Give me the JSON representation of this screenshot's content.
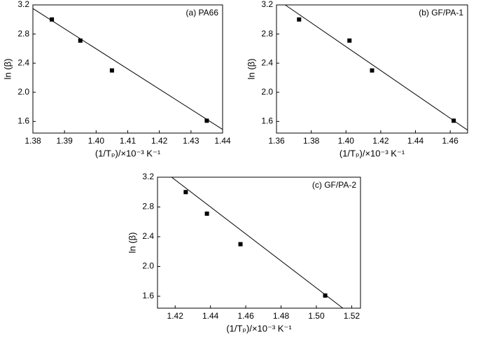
{
  "chart_data": [
    {
      "type": "scatter",
      "title": "(a) PA66",
      "xlabel": "(1/Tₚ)/×10⁻³ K⁻¹",
      "ylabel": "ln (β)",
      "x": [
        1.386,
        1.395,
        1.405,
        1.435
      ],
      "values": [
        3.0,
        2.71,
        2.3,
        1.61
      ],
      "color": "#000000",
      "fit_line": {
        "x": [
          1.38,
          1.44
        ],
        "y": [
          3.15,
          1.49
        ]
      },
      "xlim": [
        1.38,
        1.44
      ],
      "xticks": [
        1.38,
        1.39,
        {
          "value": 1.4,
          "label": "1.40"
        },
        1.41,
        1.42,
        1.43,
        1.44
      ],
      "ylim": [
        1.44,
        3.2
      ],
      "yticks": [
        1.6,
        {
          "value": 2.0,
          "label": "2.0"
        },
        2.4,
        2.8,
        3.2
      ]
    },
    {
      "type": "scatter",
      "title": "(b) GF/PA-1",
      "xlabel": "(1/Tₚ)/×10⁻³ K⁻¹",
      "ylabel": "ln (β)",
      "x": [
        1.373,
        1.402,
        1.415,
        1.462
      ],
      "values": [
        3.0,
        2.71,
        2.3,
        1.61
      ],
      "color": "#000000",
      "fit_line": {
        "x": [
          1.365,
          1.47
        ],
        "y": [
          3.2,
          1.48
        ]
      },
      "xlim": [
        1.36,
        1.47
      ],
      "xticks": [
        1.36,
        1.38,
        {
          "value": 1.4,
          "label": "1.40"
        },
        1.42,
        1.44,
        1.46
      ],
      "ylim": [
        1.44,
        3.2
      ],
      "yticks": [
        1.6,
        {
          "value": 2.0,
          "label": "2.0"
        },
        2.4,
        2.8,
        3.2
      ]
    },
    {
      "type": "scatter",
      "title": "(c) GF/PA-2",
      "xlabel": "(1/Tₚ)/×10⁻³ K⁻¹",
      "ylabel": "ln (β)",
      "x": [
        1.426,
        1.438,
        1.457,
        1.505
      ],
      "values": [
        3.0,
        2.71,
        2.3,
        1.61
      ],
      "color": "#000000",
      "fit_line": {
        "x": [
          1.418,
          1.515
        ],
        "y": [
          3.2,
          1.44
        ]
      },
      "xlim": [
        1.41,
        1.525
      ],
      "xticks": [
        1.42,
        1.44,
        1.46,
        1.48,
        {
          "value": 1.5,
          "label": "1.50"
        },
        1.52
      ],
      "ylim": [
        1.44,
        3.2
      ],
      "yticks": [
        1.6,
        {
          "value": 2.0,
          "label": "2.0"
        },
        2.4,
        2.8,
        3.2
      ]
    }
  ]
}
